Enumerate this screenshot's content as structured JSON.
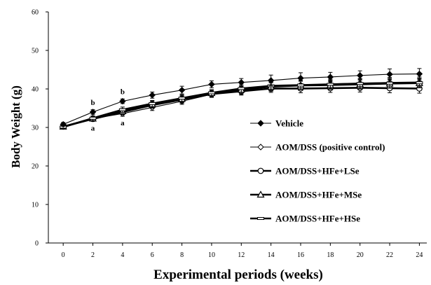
{
  "chart_data": {
    "type": "line",
    "title": "",
    "xlabel": "Experimental periods (weeks)",
    "ylabel": "Body Weight (g)",
    "xlim": [
      -1,
      24.5
    ],
    "ylim": [
      0,
      60
    ],
    "x_ticks": [
      0,
      2,
      4,
      6,
      8,
      10,
      12,
      14,
      16,
      18,
      20,
      22,
      24
    ],
    "y_ticks": [
      0,
      10,
      20,
      30,
      40,
      50,
      60
    ],
    "grid": false,
    "legend_position": "right",
    "x": [
      0,
      2,
      4,
      6,
      8,
      10,
      12,
      14,
      16,
      18,
      20,
      22,
      24
    ],
    "series": [
      {
        "name": "Vehicle",
        "marker": "filled-diamond",
        "line": "thin",
        "values": [
          30.8,
          34.0,
          36.8,
          38.4,
          39.7,
          41.2,
          41.7,
          42.2,
          42.8,
          43.1,
          43.5,
          43.8,
          43.9
        ],
        "errors": [
          0.5,
          0.6,
          0.6,
          0.8,
          1.0,
          0.9,
          1.0,
          1.4,
          1.4,
          1.2,
          1.2,
          1.4,
          1.4
        ]
      },
      {
        "name": "AOM/DSS (positive control)",
        "marker": "open-diamond",
        "line": "thin",
        "values": [
          30.3,
          32.3,
          33.6,
          35.2,
          36.8,
          38.6,
          39.6,
          40.5,
          41.0,
          41.3,
          41.5,
          41.7,
          41.8
        ],
        "errors": [
          0.4,
          0.6,
          0.7,
          0.8,
          0.8,
          0.8,
          1.0,
          1.1,
          1.2,
          1.2,
          1.2,
          1.3,
          1.3
        ]
      },
      {
        "name": "AOM/DSS+HFe+LSe",
        "marker": "open-circle",
        "line": "thick",
        "values": [
          30.2,
          32.2,
          34.0,
          35.8,
          37.2,
          38.7,
          39.4,
          40.1,
          40.1,
          40.2,
          40.3,
          40.2,
          40.1
        ],
        "errors": [
          0.4,
          0.6,
          0.7,
          0.8,
          0.9,
          0.8,
          1.0,
          1.0,
          1.1,
          1.1,
          1.1,
          1.2,
          1.2
        ]
      },
      {
        "name": "AOM/DSS+HFe+MSe",
        "marker": "open-triangle",
        "line": "thick",
        "values": [
          30.2,
          32.3,
          34.2,
          36.0,
          37.4,
          38.9,
          39.8,
          40.6,
          40.9,
          41.0,
          41.2,
          41.4,
          41.5
        ],
        "errors": [
          0.4,
          0.6,
          0.7,
          0.8,
          0.9,
          0.8,
          1.0,
          1.1,
          1.1,
          1.1,
          1.2,
          1.2,
          1.2
        ]
      },
      {
        "name": "AOM/DSS+HFe+HSe",
        "marker": "open-square",
        "line": "thick",
        "values": [
          30.1,
          32.4,
          34.6,
          36.2,
          37.6,
          39.0,
          40.1,
          40.8,
          41.0,
          41.2,
          41.4,
          41.5,
          41.6
        ],
        "errors": [
          0.4,
          0.6,
          0.7,
          0.8,
          0.9,
          0.8,
          1.0,
          1.1,
          1.1,
          1.1,
          1.2,
          1.2,
          1.2
        ]
      }
    ],
    "annotations": [
      {
        "text": "b",
        "x": 2,
        "y": 34.0,
        "position": "above"
      },
      {
        "text": "b",
        "x": 4,
        "y": 36.8,
        "position": "above"
      },
      {
        "text": "a",
        "x": 2,
        "y": 32.3,
        "position": "below"
      },
      {
        "text": "a",
        "x": 4,
        "y": 33.6,
        "position": "below"
      }
    ]
  }
}
